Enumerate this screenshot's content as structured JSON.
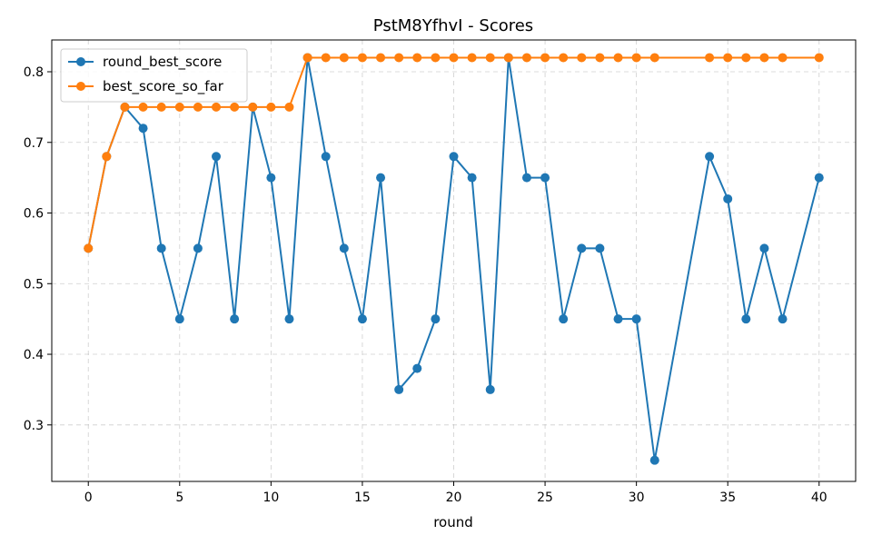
{
  "chart_data": {
    "type": "line",
    "title": "PstM8YfhvI - Scores",
    "xlabel": "round",
    "ylabel": "",
    "xlim": [
      -2,
      42
    ],
    "ylim": [
      0.22,
      0.845
    ],
    "xticks": [
      0,
      5,
      10,
      15,
      20,
      25,
      30,
      35,
      40
    ],
    "yticks": [
      0.3,
      0.4,
      0.5,
      0.6,
      0.7,
      0.8
    ],
    "grid": true,
    "legend_position": "top-left",
    "series": [
      {
        "name": "round_best_score",
        "color": "#1f77b4",
        "x": [
          0,
          1,
          2,
          3,
          4,
          5,
          6,
          7,
          8,
          9,
          10,
          11,
          12,
          13,
          14,
          15,
          16,
          17,
          18,
          19,
          20,
          21,
          22,
          23,
          24,
          25,
          26,
          27,
          28,
          29,
          30,
          31,
          34,
          35,
          36,
          37,
          38,
          40
        ],
        "values": [
          0.55,
          0.68,
          0.75,
          0.72,
          0.55,
          0.45,
          0.55,
          0.68,
          0.45,
          0.75,
          0.65,
          0.45,
          0.82,
          0.68,
          0.55,
          0.45,
          0.65,
          0.35,
          0.38,
          0.45,
          0.68,
          0.65,
          0.35,
          0.82,
          0.65,
          0.65,
          0.45,
          0.55,
          0.55,
          0.45,
          0.45,
          0.25,
          0.68,
          0.62,
          0.45,
          0.55,
          0.45,
          0.65
        ]
      },
      {
        "name": "best_score_so_far",
        "color": "#ff7f0e",
        "x": [
          0,
          1,
          2,
          3,
          4,
          5,
          6,
          7,
          8,
          9,
          10,
          11,
          12,
          13,
          14,
          15,
          16,
          17,
          18,
          19,
          20,
          21,
          22,
          23,
          24,
          25,
          26,
          27,
          28,
          29,
          30,
          31,
          34,
          35,
          36,
          37,
          38,
          40
        ],
        "values": [
          0.55,
          0.68,
          0.75,
          0.75,
          0.75,
          0.75,
          0.75,
          0.75,
          0.75,
          0.75,
          0.75,
          0.75,
          0.82,
          0.82,
          0.82,
          0.82,
          0.82,
          0.82,
          0.82,
          0.82,
          0.82,
          0.82,
          0.82,
          0.82,
          0.82,
          0.82,
          0.82,
          0.82,
          0.82,
          0.82,
          0.82,
          0.82,
          0.82,
          0.82,
          0.82,
          0.82,
          0.82,
          0.82
        ]
      }
    ]
  }
}
